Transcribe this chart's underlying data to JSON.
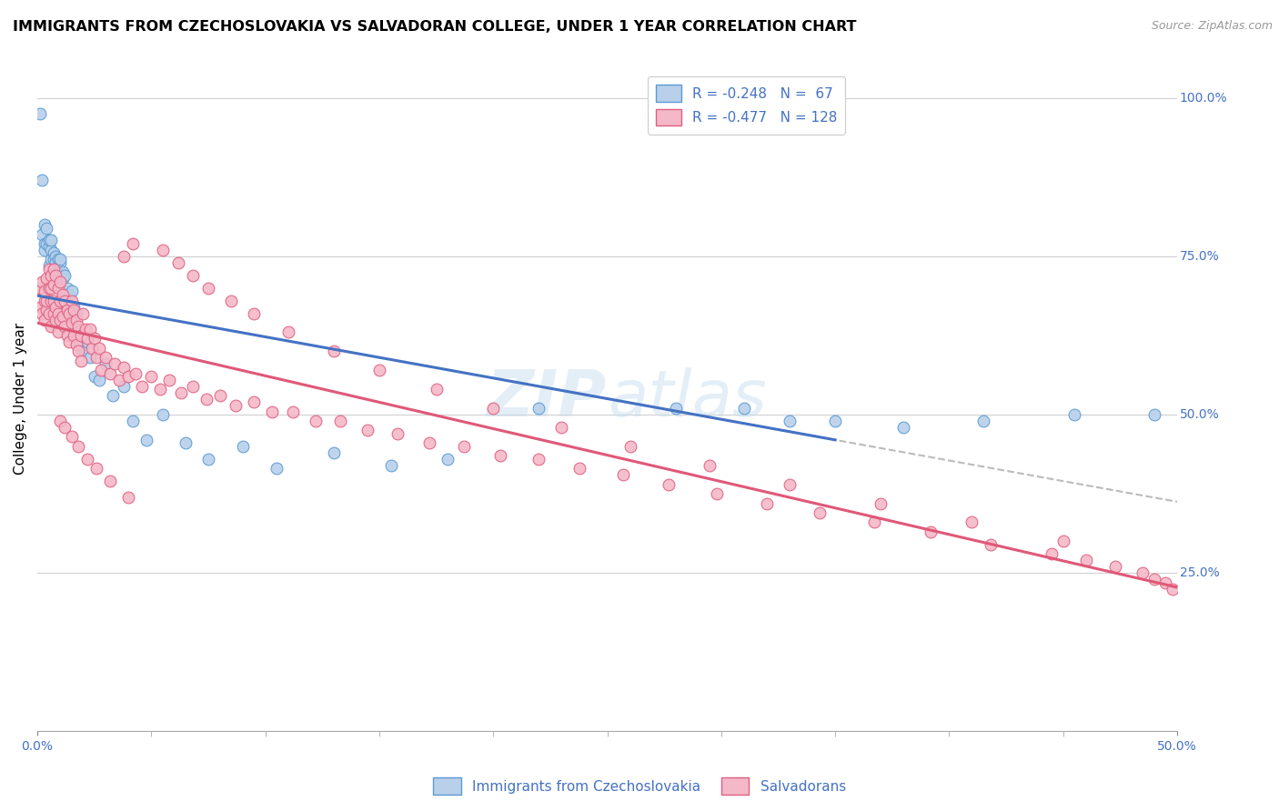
{
  "title": "IMMIGRANTS FROM CZECHOSLOVAKIA VS SALVADORAN COLLEGE, UNDER 1 YEAR CORRELATION CHART",
  "source": "Source: ZipAtlas.com",
  "ylabel": "College, Under 1 year",
  "legend_blue_label": "Immigrants from Czechoslovakia",
  "legend_pink_label": "Salvadorans",
  "legend_blue_R": -0.248,
  "legend_blue_N": 67,
  "legend_pink_R": -0.477,
  "legend_pink_N": 128,
  "blue_fill_color": "#b8d0ea",
  "blue_edge_color": "#5b9bd5",
  "pink_fill_color": "#f4b8c8",
  "pink_edge_color": "#e06080",
  "blue_line_color": "#4472c4",
  "pink_line_color": "#e05878",
  "dash_line_color": "#aaaaaa",
  "text_color": "#4472c4",
  "watermark": "ZIPatlas",
  "xlim": [
    0.0,
    0.5
  ],
  "ylim": [
    0.0,
    1.05
  ],
  "blue_scatter_x": [
    0.001,
    0.002,
    0.002,
    0.003,
    0.003,
    0.003,
    0.004,
    0.004,
    0.005,
    0.005,
    0.005,
    0.006,
    0.006,
    0.006,
    0.006,
    0.007,
    0.007,
    0.007,
    0.008,
    0.008,
    0.008,
    0.009,
    0.009,
    0.009,
    0.01,
    0.01,
    0.01,
    0.011,
    0.011,
    0.012,
    0.012,
    0.013,
    0.013,
    0.014,
    0.015,
    0.015,
    0.016,
    0.017,
    0.018,
    0.019,
    0.02,
    0.022,
    0.023,
    0.025,
    0.027,
    0.03,
    0.033,
    0.038,
    0.042,
    0.048,
    0.055,
    0.065,
    0.075,
    0.09,
    0.105,
    0.13,
    0.155,
    0.18,
    0.22,
    0.28,
    0.31,
    0.33,
    0.35,
    0.38,
    0.415,
    0.455,
    0.49
  ],
  "blue_scatter_y": [
    0.975,
    0.785,
    0.87,
    0.77,
    0.76,
    0.8,
    0.795,
    0.77,
    0.765,
    0.775,
    0.735,
    0.76,
    0.745,
    0.775,
    0.715,
    0.755,
    0.745,
    0.73,
    0.75,
    0.74,
    0.725,
    0.745,
    0.73,
    0.72,
    0.74,
    0.71,
    0.745,
    0.725,
    0.715,
    0.72,
    0.68,
    0.7,
    0.67,
    0.69,
    0.695,
    0.655,
    0.67,
    0.66,
    0.635,
    0.61,
    0.6,
    0.615,
    0.59,
    0.56,
    0.555,
    0.58,
    0.53,
    0.545,
    0.49,
    0.46,
    0.5,
    0.455,
    0.43,
    0.45,
    0.415,
    0.44,
    0.42,
    0.43,
    0.51,
    0.51,
    0.51,
    0.49,
    0.49,
    0.48,
    0.49,
    0.5,
    0.5
  ],
  "pink_scatter_x": [
    0.001,
    0.001,
    0.002,
    0.002,
    0.003,
    0.003,
    0.003,
    0.004,
    0.004,
    0.004,
    0.005,
    0.005,
    0.005,
    0.006,
    0.006,
    0.006,
    0.006,
    0.007,
    0.007,
    0.007,
    0.007,
    0.008,
    0.008,
    0.008,
    0.009,
    0.009,
    0.009,
    0.01,
    0.01,
    0.01,
    0.011,
    0.011,
    0.012,
    0.012,
    0.013,
    0.013,
    0.014,
    0.014,
    0.015,
    0.015,
    0.016,
    0.016,
    0.017,
    0.017,
    0.018,
    0.018,
    0.019,
    0.019,
    0.02,
    0.021,
    0.022,
    0.023,
    0.024,
    0.025,
    0.026,
    0.027,
    0.028,
    0.03,
    0.032,
    0.034,
    0.036,
    0.038,
    0.04,
    0.043,
    0.046,
    0.05,
    0.054,
    0.058,
    0.063,
    0.068,
    0.074,
    0.08,
    0.087,
    0.095,
    0.103,
    0.112,
    0.122,
    0.133,
    0.145,
    0.158,
    0.172,
    0.187,
    0.203,
    0.22,
    0.238,
    0.257,
    0.277,
    0.298,
    0.32,
    0.343,
    0.367,
    0.392,
    0.418,
    0.445,
    0.46,
    0.473,
    0.485,
    0.49,
    0.495,
    0.498,
    0.038,
    0.042,
    0.055,
    0.062,
    0.068,
    0.075,
    0.085,
    0.095,
    0.11,
    0.13,
    0.15,
    0.175,
    0.2,
    0.23,
    0.26,
    0.295,
    0.33,
    0.37,
    0.41,
    0.45,
    0.01,
    0.012,
    0.015,
    0.018,
    0.022,
    0.026,
    0.032,
    0.04
  ],
  "pink_scatter_y": [
    0.67,
    0.7,
    0.71,
    0.66,
    0.68,
    0.65,
    0.695,
    0.715,
    0.665,
    0.68,
    0.73,
    0.7,
    0.66,
    0.72,
    0.68,
    0.64,
    0.7,
    0.73,
    0.68,
    0.66,
    0.705,
    0.72,
    0.67,
    0.65,
    0.7,
    0.66,
    0.63,
    0.71,
    0.68,
    0.65,
    0.69,
    0.655,
    0.68,
    0.64,
    0.665,
    0.625,
    0.66,
    0.615,
    0.68,
    0.645,
    0.665,
    0.625,
    0.65,
    0.61,
    0.64,
    0.6,
    0.625,
    0.585,
    0.66,
    0.635,
    0.62,
    0.635,
    0.605,
    0.62,
    0.59,
    0.605,
    0.57,
    0.59,
    0.565,
    0.58,
    0.555,
    0.575,
    0.56,
    0.565,
    0.545,
    0.56,
    0.54,
    0.555,
    0.535,
    0.545,
    0.525,
    0.53,
    0.515,
    0.52,
    0.505,
    0.505,
    0.49,
    0.49,
    0.475,
    0.47,
    0.455,
    0.45,
    0.435,
    0.43,
    0.415,
    0.405,
    0.39,
    0.375,
    0.36,
    0.345,
    0.33,
    0.315,
    0.295,
    0.28,
    0.27,
    0.26,
    0.25,
    0.24,
    0.235,
    0.225,
    0.75,
    0.77,
    0.76,
    0.74,
    0.72,
    0.7,
    0.68,
    0.66,
    0.63,
    0.6,
    0.57,
    0.54,
    0.51,
    0.48,
    0.45,
    0.42,
    0.39,
    0.36,
    0.33,
    0.3,
    0.49,
    0.48,
    0.465,
    0.45,
    0.43,
    0.415,
    0.395,
    0.37
  ]
}
